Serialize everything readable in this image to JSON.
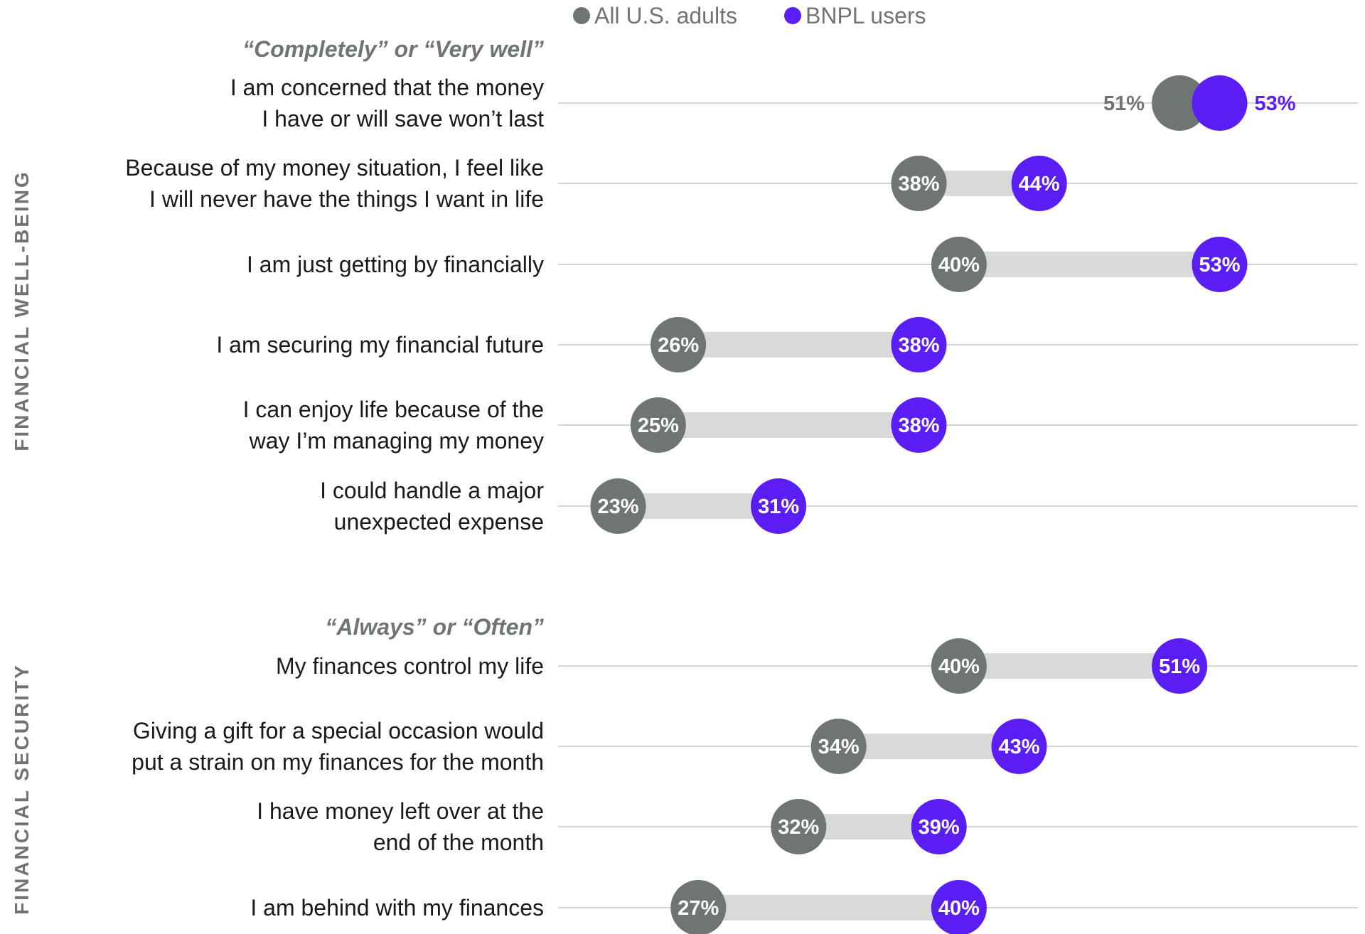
{
  "legend": [
    {
      "label": "All U.S. adults",
      "color": "#6f7575"
    },
    {
      "label": "BNPL users",
      "color": "#5a1ef5"
    }
  ],
  "sections": [
    {
      "title": "FINANCIAL WELL-BEING",
      "subheading": "“Completely” or “Very well”"
    },
    {
      "title": "FINANCIAL SECURITY",
      "subheading": "“Always” or “Often”"
    }
  ],
  "chart_data": {
    "type": "dumbbell",
    "series": [
      {
        "name": "All U.S. adults",
        "color": "#6f7575"
      },
      {
        "name": "BNPL users",
        "color": "#5a1ef5"
      }
    ],
    "rows": [
      {
        "section": 0,
        "lines": [
          "I am concerned that the money",
          "I have or will save won’t last"
        ],
        "all": 51,
        "bnpl": 53,
        "all_label": "51%",
        "bnpl_label": "53%"
      },
      {
        "section": 0,
        "lines": [
          "Because of my money situation, I feel like",
          "I will never have the things I want in life"
        ],
        "all": 38,
        "bnpl": 44,
        "all_label": "38%",
        "bnpl_label": "44%"
      },
      {
        "section": 0,
        "lines": [
          "I am just getting by financially"
        ],
        "all": 40,
        "bnpl": 53,
        "all_label": "40%",
        "bnpl_label": "53%"
      },
      {
        "section": 0,
        "lines": [
          "I am securing my financial future"
        ],
        "all": 26,
        "bnpl": 38,
        "all_label": "26%",
        "bnpl_label": "38%"
      },
      {
        "section": 0,
        "lines": [
          "I can enjoy life because of the",
          "way I’m managing my money"
        ],
        "all": 25,
        "bnpl": 38,
        "all_label": "25%",
        "bnpl_label": "38%"
      },
      {
        "section": 0,
        "lines": [
          "I could handle a major",
          "unexpected expense"
        ],
        "all": 23,
        "bnpl": 31,
        "all_label": "23%",
        "bnpl_label": "31%"
      },
      {
        "section": 1,
        "lines": [
          "My finances control my life"
        ],
        "all": 40,
        "bnpl": 51,
        "all_label": "40%",
        "bnpl_label": "51%"
      },
      {
        "section": 1,
        "lines": [
          "Giving a gift for a special occasion would",
          "put a strain on my finances for the month"
        ],
        "all": 34,
        "bnpl": 43,
        "all_label": "34%",
        "bnpl_label": "43%"
      },
      {
        "section": 1,
        "lines": [
          "I have money left over at the",
          "end of the month"
        ],
        "all": 32,
        "bnpl": 39,
        "all_label": "32%",
        "bnpl_label": "39%"
      },
      {
        "section": 1,
        "lines": [
          "I am behind with my finances"
        ],
        "all": 27,
        "bnpl": 40,
        "all_label": "27%",
        "bnpl_label": "40%"
      }
    ]
  }
}
